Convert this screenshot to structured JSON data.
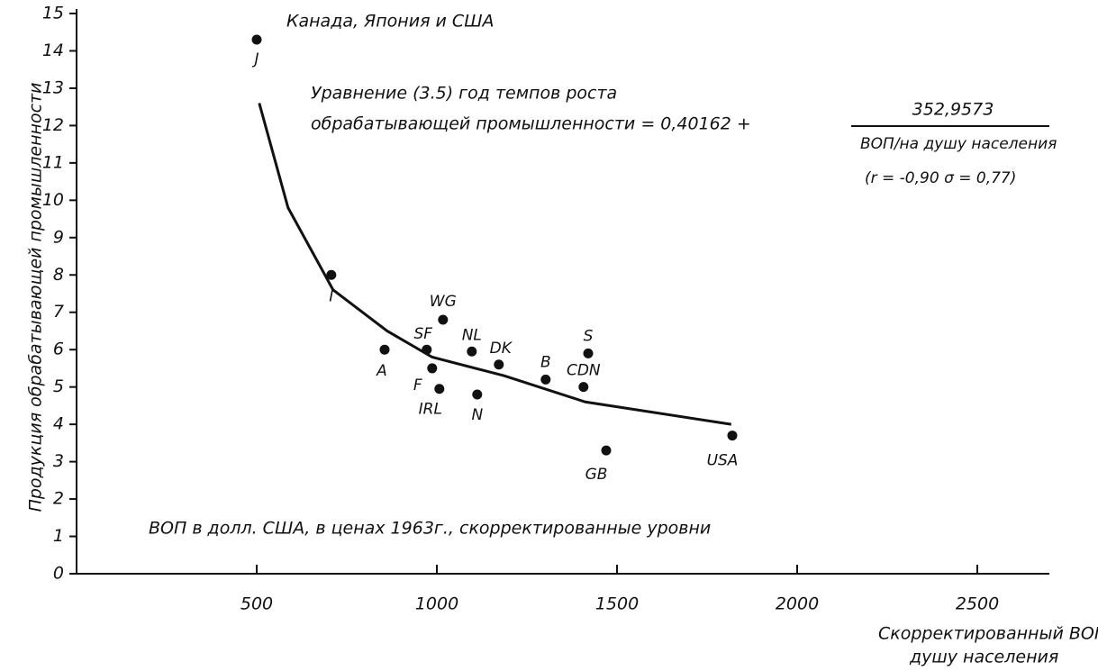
{
  "chart_data": {
    "type": "scatter",
    "title": "Канада, Япония и США",
    "annotations": {
      "equation_line1": "Уравнение (3.5) год темпов роста",
      "equation_line2": "обрабатывающей промышленности = 0,40162 +",
      "numerator": "352,9573",
      "denominator": "ВОП/на душу населения",
      "stats": "(r = -0,90   σ = 0,77)",
      "note": "ВОП в долл. США, в ценах 1963г., скорректированные уровни"
    },
    "ylabel": "Продукция обрабатывающей промышленности",
    "xlabel": [
      "Скорректированный ВОП/на",
      "душу населения"
    ],
    "color": "#111111",
    "series": [
      {
        "labels": [
          "J",
          "I",
          "A",
          "SF",
          "WG",
          "F",
          "IRL",
          "NL",
          "N",
          "DK",
          "B",
          "S",
          "CDN",
          "GB",
          "USA"
        ],
        "x": [
          500,
          707,
          855,
          972,
          1017,
          987,
          1007,
          1097,
          1112,
          1172,
          1302,
          1420,
          1407,
          1470,
          1820
        ],
        "values": [
          14.3,
          8.0,
          6.0,
          6.0,
          6.8,
          5.5,
          4.95,
          5.95,
          4.8,
          5.6,
          5.2,
          5.9,
          5.0,
          3.3,
          3.7
        ]
      }
    ],
    "curve": {
      "x": [
        507,
        587,
        712,
        862,
        987,
        1187,
        1412,
        1817
      ],
      "values": [
        12.6,
        9.8,
        7.6,
        6.5,
        5.8,
        5.3,
        4.6,
        4.0
      ]
    },
    "xlim": [
      0,
      2700
    ],
    "ylim": [
      0,
      15
    ],
    "xticks": [
      500,
      1000,
      1500,
      2000,
      2500
    ],
    "yticks": [
      0,
      1,
      2,
      3,
      4,
      5,
      6,
      7,
      8,
      9,
      10,
      11,
      12,
      13,
      14,
      15
    ]
  }
}
